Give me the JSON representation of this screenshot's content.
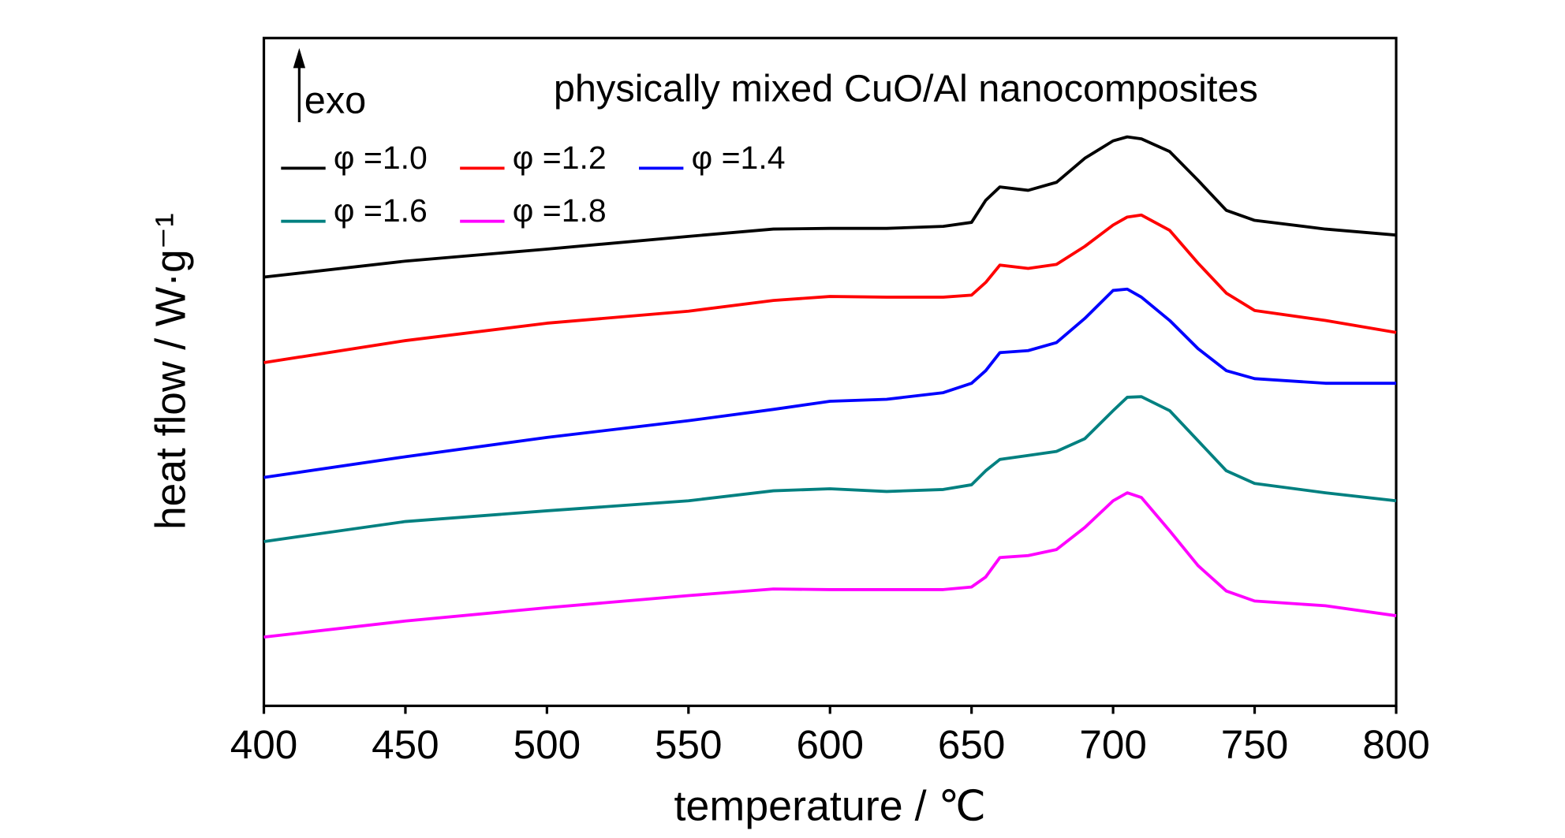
{
  "chart_data": {
    "type": "line",
    "title": "physically mixed  CuO/Al nanocomposites",
    "annotation": "exo",
    "xlabel": "temperature / ℃",
    "ylabel": "heat flow / W·g⁻¹",
    "x": [
      400,
      450,
      500,
      550,
      580,
      600,
      620,
      640,
      650,
      655,
      660,
      670,
      680,
      690,
      700,
      705,
      710,
      720,
      730,
      740,
      750,
      775,
      800
    ],
    "xlim": [
      400,
      800
    ],
    "xticks": [
      400,
      450,
      500,
      550,
      600,
      650,
      700,
      750,
      800
    ],
    "ylim": [
      0,
      100
    ],
    "legend": "upper left",
    "series": [
      {
        "name": "φ =1.0",
        "color": "#000000",
        "values": [
          64.2,
          66.6,
          68.4,
          70.3,
          71.4,
          71.5,
          71.5,
          71.8,
          72.4,
          75.7,
          77.7,
          77.2,
          78.4,
          82.0,
          84.6,
          85.2,
          84.9,
          83.0,
          78.7,
          74.2,
          72.7,
          71.4,
          70.5
        ]
      },
      {
        "name": "φ =1.2",
        "color": "#ff0000",
        "values": [
          51.4,
          54.7,
          57.3,
          59.1,
          60.7,
          61.3,
          61.2,
          61.2,
          61.5,
          63.4,
          66.0,
          65.5,
          66.1,
          68.8,
          72.0,
          73.2,
          73.5,
          71.2,
          66.3,
          61.8,
          59.2,
          57.7,
          55.9
        ]
      },
      {
        "name": "φ =1.4",
        "color": "#0000ff",
        "values": [
          34.2,
          37.3,
          40.2,
          42.7,
          44.4,
          45.6,
          45.9,
          46.9,
          48.3,
          50.2,
          52.9,
          53.2,
          54.4,
          58.0,
          62.2,
          62.4,
          61.2,
          57.7,
          53.5,
          50.2,
          49.0,
          48.3,
          48.3
        ]
      },
      {
        "name": "φ =1.6",
        "color": "#008080",
        "values": [
          24.6,
          27.6,
          29.2,
          30.7,
          32.2,
          32.5,
          32.1,
          32.4,
          33.1,
          35.2,
          36.9,
          37.5,
          38.1,
          40.0,
          44.2,
          46.2,
          46.3,
          44.2,
          39.7,
          35.2,
          33.3,
          31.9,
          30.7
        ]
      },
      {
        "name": "φ =1.8",
        "color": "#ff00ff",
        "values": [
          10.3,
          12.7,
          14.7,
          16.5,
          17.5,
          17.4,
          17.4,
          17.4,
          17.8,
          19.3,
          22.2,
          22.5,
          23.4,
          26.7,
          30.7,
          31.9,
          31.2,
          26.2,
          21.0,
          17.2,
          15.7,
          15.0,
          13.5
        ]
      }
    ]
  }
}
